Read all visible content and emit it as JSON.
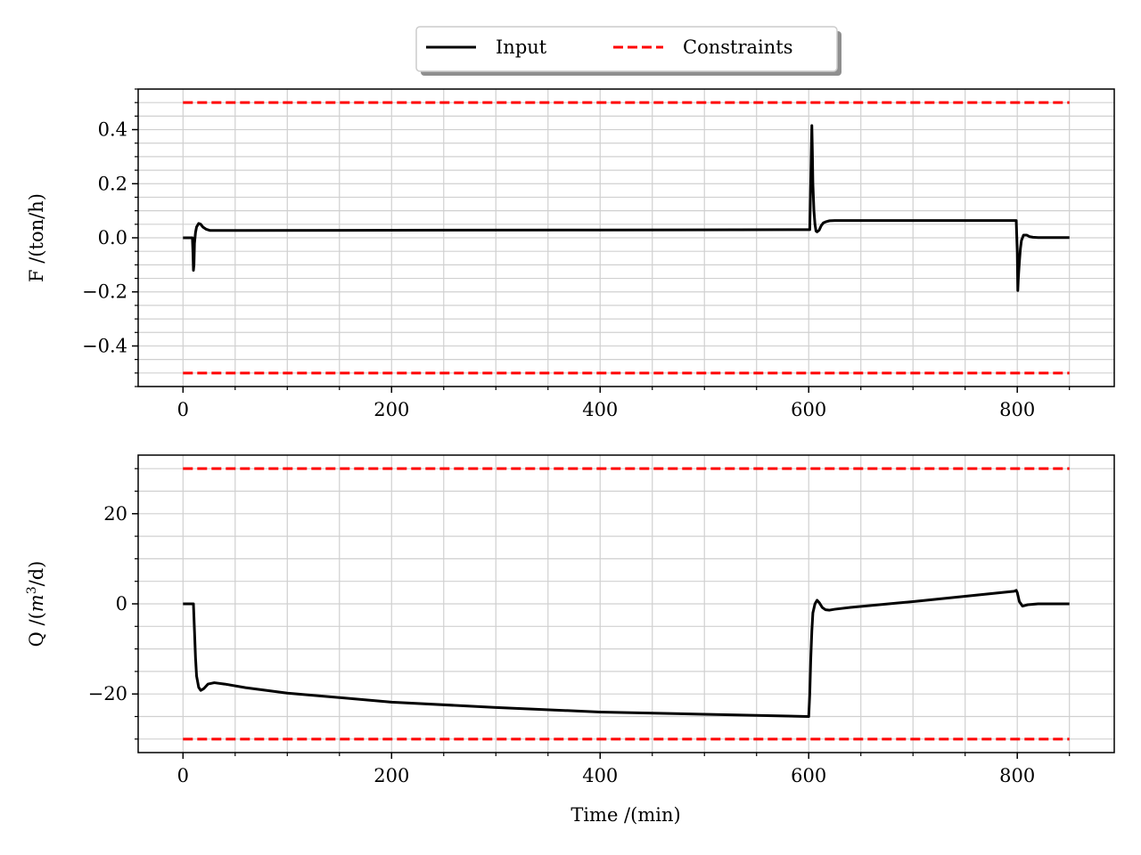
{
  "legend": {
    "entries": [
      {
        "label": "Input",
        "color": "#000000",
        "style": "solid"
      },
      {
        "label": "Constraints",
        "color": "#ff0000",
        "style": "dashed"
      }
    ],
    "placement": "top-center"
  },
  "chart_data": [
    {
      "type": "line",
      "xlabel": "",
      "ylabel": "F /(ton/h)",
      "xlim": [
        -43,
        893
      ],
      "ylim": [
        -0.55,
        0.55
      ],
      "xticks": [
        0,
        200,
        400,
        600,
        800
      ],
      "xtick_labels": [
        "0",
        "200",
        "400",
        "600",
        "800"
      ],
      "yticks": [
        -0.4,
        -0.2,
        0.0,
        0.2,
        0.4
      ],
      "ytick_labels": [
        "−0.4",
        "−0.2",
        "0.0",
        "0.2",
        "0.4"
      ],
      "grid": true,
      "series": [
        {
          "name": "Input",
          "color": "#000000",
          "style": "solid",
          "x": [
            0,
            9,
            9.5,
            10,
            10.5,
            11,
            12,
            13,
            15,
            17,
            19,
            22,
            26,
            30,
            60,
            200,
            400,
            600,
            601,
            602,
            603,
            603.5,
            604,
            605,
            606,
            607,
            608,
            610,
            612,
            614,
            617,
            620,
            625,
            700,
            798,
            799,
            800,
            800.5,
            801,
            802,
            803,
            804,
            806,
            809,
            812,
            815,
            820,
            850
          ],
          "y": [
            0,
            0,
            -0.05,
            -0.12,
            -0.1,
            -0.02,
            0.02,
            0.04,
            0.053,
            0.05,
            0.04,
            0.032,
            0.027,
            0.027,
            0.027,
            0.028,
            0.029,
            0.03,
            0.03,
            0.22,
            0.415,
            0.32,
            0.2,
            0.1,
            0.05,
            0.025,
            0.022,
            0.028,
            0.045,
            0.055,
            0.06,
            0.063,
            0.064,
            0.064,
            0.064,
            0.064,
            -0.05,
            -0.195,
            -0.15,
            -0.09,
            -0.04,
            -0.01,
            0.01,
            0.01,
            0.004,
            0.002,
            0.001,
            0.001
          ]
        },
        {
          "name": "Constraints",
          "color": "#ff0000",
          "style": "dashed",
          "x": [
            0,
            850
          ],
          "y": [
            0.5,
            0.5
          ]
        },
        {
          "name": "Constraints",
          "color": "#ff0000",
          "style": "dashed",
          "x": [
            0,
            850
          ],
          "y": [
            -0.5,
            -0.5
          ]
        }
      ]
    },
    {
      "type": "line",
      "xlabel": "Time /(min)",
      "ylabel": "Q /(m³/d)",
      "ylabel_base": "Q /(",
      "ylabel_var": "m",
      "ylabel_sup": "3",
      "ylabel_rest": "/d)",
      "xlim": [
        -43,
        893
      ],
      "ylim": [
        -33,
        33
      ],
      "xticks": [
        0,
        200,
        400,
        600,
        800
      ],
      "xtick_labels": [
        "0",
        "200",
        "400",
        "600",
        "800"
      ],
      "yticks": [
        -20,
        0,
        20
      ],
      "ytick_labels": [
        "−20",
        "0",
        "20"
      ],
      "grid": true,
      "series": [
        {
          "name": "Input",
          "color": "#000000",
          "style": "solid",
          "x": [
            0,
            10,
            11,
            12,
            13,
            15,
            17,
            20,
            24,
            30,
            40,
            60,
            100,
            150,
            200,
            300,
            400,
            500,
            599,
            600,
            601,
            602,
            603,
            604,
            606,
            608,
            610,
            613,
            616,
            620,
            625,
            640,
            700,
            797,
            799,
            800,
            802,
            805,
            810,
            820,
            850
          ],
          "y": [
            0,
            0,
            -6,
            -12,
            -16,
            -18.5,
            -19.2,
            -18.8,
            -17.8,
            -17.5,
            -17.8,
            -18.6,
            -19.8,
            -20.8,
            -21.8,
            -23,
            -24,
            -24.5,
            -25,
            -25,
            -20,
            -12,
            -6,
            -2,
            0,
            0.8,
            0.3,
            -0.8,
            -1.3,
            -1.4,
            -1.2,
            -0.8,
            0.5,
            2.8,
            3.0,
            2.5,
            0.5,
            -0.5,
            -0.2,
            0,
            0
          ]
        },
        {
          "name": "Constraints",
          "color": "#ff0000",
          "style": "dashed",
          "x": [
            0,
            850
          ],
          "y": [
            30,
            30
          ]
        },
        {
          "name": "Constraints",
          "color": "#ff0000",
          "style": "dashed",
          "x": [
            0,
            850
          ],
          "y": [
            -30,
            -30
          ]
        }
      ]
    }
  ]
}
